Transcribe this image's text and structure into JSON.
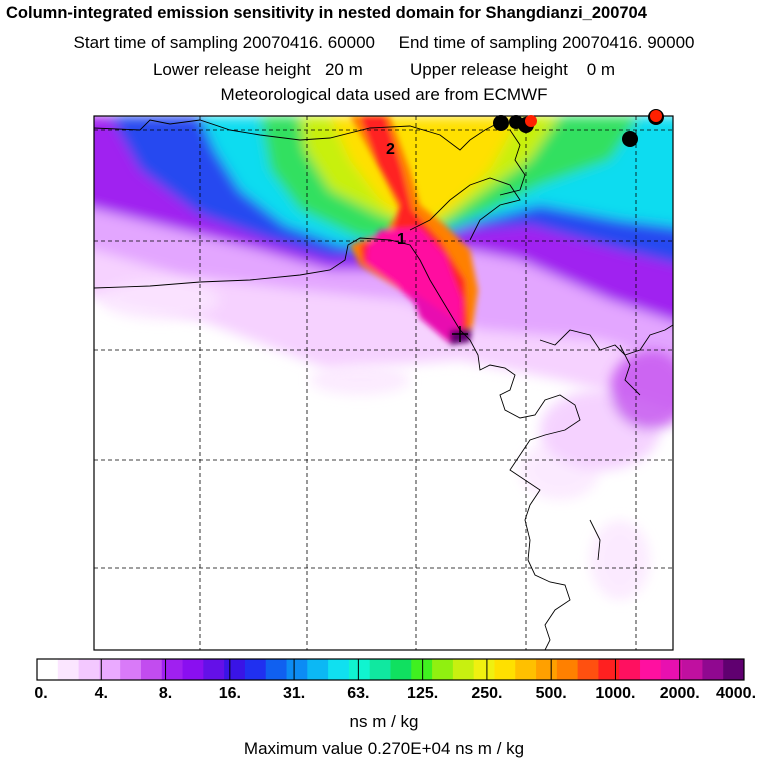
{
  "header": {
    "title": "Column-integrated emission sensitivity in nested domain for Shangdianzi_200704",
    "line1_start_label": "Start time of sampling",
    "line1_start_value": "20070416. 60000",
    "line1_end_label": "End time of sampling",
    "line1_end_value": "20070416. 90000",
    "line2_lower_label": "Lower release height",
    "line2_lower_value": "20 m",
    "line2_upper_label": "Upper release height",
    "line2_upper_value": "0 m",
    "line3": "Meteorological data used are from ECMWF"
  },
  "map": {
    "contour_labels": [
      "2",
      "1"
    ]
  },
  "colorbar": {
    "tick_labels": [
      "0.",
      "4.",
      "8.",
      "16.",
      "31.",
      "63.",
      "125.",
      "250.",
      "500.",
      "1000.",
      "2000.",
      "4000."
    ],
    "colors": [
      "#ffffff",
      "#fbe6ff",
      "#f3c8ff",
      "#eaaaff",
      "#d97af8",
      "#c24cef",
      "#a020f0",
      "#8a0ff0",
      "#6410e8",
      "#3a14e6",
      "#2030f0",
      "#1060f0",
      "#0c8cf4",
      "#0cb8f4",
      "#10e0f0",
      "#10f4d0",
      "#10e8a0",
      "#10e060",
      "#40f020",
      "#90f010",
      "#c8f010",
      "#f0f010",
      "#ffe000",
      "#ffc000",
      "#ffa000",
      "#ff8000",
      "#ff5010",
      "#ff2020",
      "#ff1060",
      "#ff10a0",
      "#e810b0",
      "#c010a0",
      "#900890",
      "#600070"
    ],
    "unit": "ns m / kg"
  },
  "footer": {
    "max_label": "Maximum value",
    "max_value": "0.270E+04 ns m / kg"
  }
}
